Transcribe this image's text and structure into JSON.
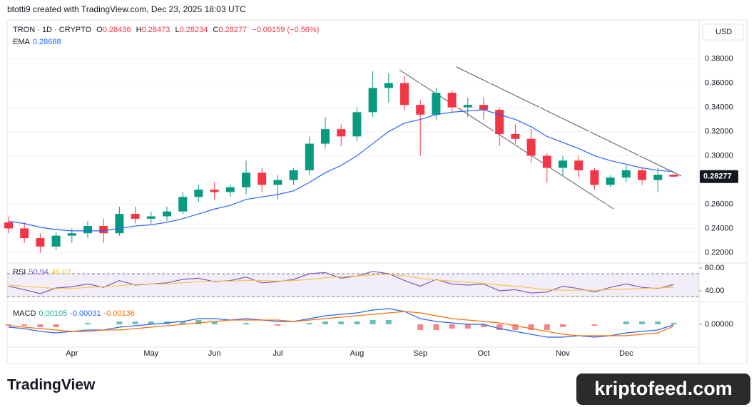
{
  "header": "btotti9 created with TradingView.com, Dec 23, 2025 18:03 UTC",
  "footer": {
    "logo": "TradingView",
    "watermark": "kriptofeed.com"
  },
  "chart_data": [
    {
      "type": "candlestick",
      "title": "TRON · 1D · CRYPTO",
      "currency": "USD",
      "ohlc_labels": [
        "O",
        "H",
        "L",
        "C"
      ],
      "change": "−0.00159 (−0.56%)",
      "categories": [
        null,
        null,
        null,
        null,
        "Apr",
        null,
        null,
        null,
        null,
        "May",
        null,
        null,
        null,
        "Jun",
        null,
        null,
        null,
        "Jul",
        null,
        null,
        null,
        null,
        "Aug",
        null,
        null,
        null,
        "Sep",
        null,
        null,
        null,
        "Oct",
        null,
        null,
        null,
        null,
        "Nov",
        null,
        null,
        null,
        "Dec",
        null,
        null,
        null
      ],
      "open": [
        0.245,
        0.24,
        0.232,
        0.225,
        0.234,
        0.236,
        0.242,
        0.236,
        0.252,
        0.248,
        0.25,
        0.254,
        0.266,
        0.272,
        0.27,
        0.274,
        0.286,
        0.276,
        0.28,
        0.288,
        0.31,
        0.322,
        0.316,
        0.336,
        0.356,
        0.36,
        0.342,
        0.334,
        0.352,
        0.34,
        0.342,
        0.338,
        0.318,
        0.314,
        0.3,
        0.29,
        0.296,
        0.288,
        0.276,
        0.282,
        0.288,
        0.28,
        0.28436
      ],
      "high": [
        0.25,
        0.245,
        0.236,
        0.237,
        0.24,
        0.246,
        0.248,
        0.258,
        0.258,
        0.254,
        0.258,
        0.27,
        0.276,
        0.278,
        0.276,
        0.296,
        0.29,
        0.284,
        0.29,
        0.316,
        0.332,
        0.326,
        0.34,
        0.37,
        0.368,
        0.366,
        0.346,
        0.356,
        0.354,
        0.348,
        0.348,
        0.34,
        0.326,
        0.322,
        0.302,
        0.3,
        0.3,
        0.29,
        0.284,
        0.292,
        0.29,
        0.29,
        0.28473
      ],
      "low": [
        0.236,
        0.228,
        0.22,
        0.222,
        0.228,
        0.232,
        0.228,
        0.234,
        0.244,
        0.244,
        0.246,
        0.252,
        0.262,
        0.264,
        0.266,
        0.268,
        0.27,
        0.264,
        0.276,
        0.284,
        0.306,
        0.308,
        0.312,
        0.332,
        0.344,
        0.338,
        0.3,
        0.33,
        0.336,
        0.332,
        0.33,
        0.308,
        0.31,
        0.294,
        0.278,
        0.284,
        0.282,
        0.272,
        0.274,
        0.278,
        0.276,
        0.27,
        0.28234
      ],
      "close": [
        0.24,
        0.232,
        0.225,
        0.234,
        0.236,
        0.242,
        0.236,
        0.252,
        0.248,
        0.25,
        0.254,
        0.266,
        0.272,
        0.27,
        0.274,
        0.286,
        0.276,
        0.28,
        0.288,
        0.31,
        0.322,
        0.316,
        0.336,
        0.356,
        0.36,
        0.342,
        0.334,
        0.352,
        0.34,
        0.342,
        0.338,
        0.318,
        0.314,
        0.3,
        0.29,
        0.296,
        0.288,
        0.276,
        0.282,
        0.288,
        0.28,
        0.28436,
        0.28277
      ],
      "up_color": "#089981",
      "down_color": "#f23645",
      "series": [
        {
          "name": "EMA",
          "color": "#2962ff",
          "values": [
            0.246,
            0.244,
            0.241,
            0.239,
            0.238,
            0.238,
            0.238,
            0.24,
            0.242,
            0.243,
            0.245,
            0.248,
            0.252,
            0.256,
            0.259,
            0.264,
            0.266,
            0.268,
            0.271,
            0.278,
            0.286,
            0.292,
            0.3,
            0.31,
            0.32,
            0.327,
            0.33,
            0.334,
            0.336,
            0.337,
            0.338,
            0.334,
            0.33,
            0.324,
            0.316,
            0.311,
            0.306,
            0.3,
            0.296,
            0.293,
            0.29,
            0.288,
            0.28688
          ]
        }
      ],
      "ylim": [
        0.212,
        0.411
      ],
      "yticks": [
        {
          "value": 0.38,
          "label": "0.38000"
        },
        {
          "value": 0.36,
          "label": "0.36000"
        },
        {
          "value": 0.34,
          "label": "0.34000"
        },
        {
          "value": 0.32,
          "label": "0.32000"
        },
        {
          "value": 0.3,
          "label": "0.30000"
        },
        {
          "value": 0.26,
          "label": "0.26000"
        },
        {
          "value": 0.24,
          "label": "0.24000"
        },
        {
          "value": 0.22,
          "label": "0.22000"
        }
      ]
    },
    {
      "type": "line",
      "title": "RSI",
      "series": [
        {
          "color": "#7e57c2",
          "values": [
            48,
            42,
            35,
            45,
            47,
            52,
            46,
            58,
            50,
            52,
            54,
            60,
            62,
            56,
            58,
            64,
            54,
            56,
            60,
            70,
            72,
            62,
            66,
            74,
            70,
            58,
            48,
            60,
            52,
            50,
            52,
            40,
            42,
            36,
            38,
            48,
            44,
            38,
            46,
            52,
            46,
            44,
            50.94
          ]
        },
        {
          "color": "#f7c548",
          "values": [
            50,
            48,
            46,
            44,
            44,
            46,
            47,
            49,
            51,
            52,
            52,
            54,
            56,
            57,
            57,
            58,
            58,
            57,
            58,
            60,
            63,
            65,
            66,
            68,
            69,
            66,
            62,
            59,
            57,
            55,
            53,
            50,
            48,
            45,
            42,
            41,
            41,
            41,
            42,
            43,
            44,
            45,
            46.03
          ]
        }
      ],
      "bands": [
        30,
        70
      ],
      "band_color": "#7e57c2",
      "ylim": [
        25,
        87.5
      ],
      "yticks": [
        {
          "value": 80,
          "label": "80.00"
        },
        {
          "value": 40,
          "label": "40.00"
        }
      ]
    },
    {
      "type": "macd",
      "title": "MACD",
      "histogram": {
        "pos_color": "#26a69a",
        "neg_color": "#ef5350",
        "values": [
          -0.001,
          -0.001,
          -0.002,
          -0.002,
          0,
          0.001,
          0,
          0.002,
          0.002,
          0.002,
          0.002,
          0.002,
          0.003,
          0.002,
          0,
          0.001,
          0,
          -0.001,
          0,
          0.001,
          0.002,
          0.002,
          0.002,
          0.003,
          0.003,
          0,
          -0.004,
          -0.004,
          -0.003,
          -0.003,
          -0.002,
          -0.004,
          -0.004,
          -0.004,
          -0.004,
          -0.002,
          0,
          -0.001,
          0,
          0.002,
          0.002,
          0.002,
          0.00105
        ]
      },
      "series": [
        {
          "color": "#2962ff",
          "values": [
            -0.002,
            -0.003,
            -0.005,
            -0.006,
            -0.005,
            -0.004,
            -0.004,
            -0.002,
            -0.001,
            0,
            0.001,
            0.002,
            0.004,
            0.004,
            0.003,
            0.004,
            0.003,
            0.002,
            0.002,
            0.004,
            0.006,
            0.007,
            0.008,
            0.01,
            0.011,
            0.009,
            0.004,
            0.002,
            0.001,
            0,
            0,
            -0.003,
            -0.005,
            -0.007,
            -0.009,
            -0.009,
            -0.008,
            -0.009,
            -0.008,
            -0.006,
            -0.005,
            -0.004,
            -0.00031
          ]
        },
        {
          "color": "#ff6d00",
          "values": [
            -0.001,
            -0.002,
            -0.003,
            -0.004,
            -0.005,
            -0.005,
            -0.004,
            -0.004,
            -0.003,
            -0.002,
            -0.001,
            0,
            0.001,
            0.002,
            0.003,
            0.003,
            0.003,
            0.003,
            0.002,
            0.003,
            0.004,
            0.005,
            0.006,
            0.007,
            0.008,
            0.009,
            0.008,
            0.006,
            0.004,
            0.003,
            0.002,
            0.001,
            -0.001,
            -0.003,
            -0.005,
            -0.007,
            -0.008,
            -0.008,
            -0.008,
            -0.008,
            -0.007,
            -0.006,
            -0.00136
          ]
        }
      ],
      "ylim": [
        -0.015,
        0.015
      ],
      "yticks": [
        {
          "value": 0,
          "label": "0.00000"
        }
      ]
    }
  ]
}
